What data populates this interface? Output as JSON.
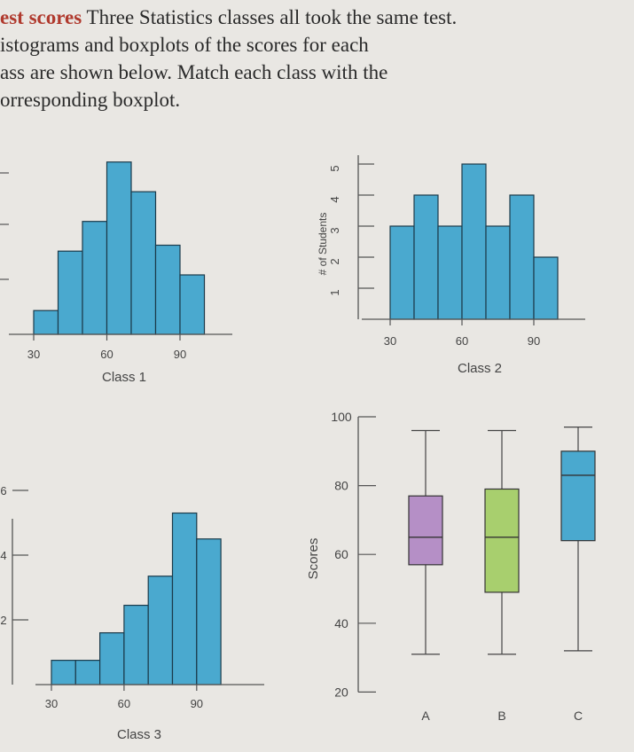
{
  "problem": {
    "heading": "est scores",
    "lines": [
      " Three Statistics classes all took the same test.",
      "istograms and boxplots of the scores for each",
      "ass are shown below. Match each class with the",
      "orresponding boxplot."
    ]
  },
  "colors": {
    "bar_fill": "#4aa9cf",
    "bar_stroke": "#1b3a4a",
    "box_a": "#b58fc6",
    "box_b": "#a8cf6e",
    "box_c": "#4aa9cf"
  },
  "chart_data": [
    {
      "type": "bar",
      "xlabel": "Class 1",
      "ylabel": "",
      "x_ticks": [
        "30",
        "60",
        "90"
      ],
      "bin_width": 10,
      "bin_starts": [
        30,
        40,
        50,
        60,
        70,
        80,
        90
      ],
      "values": [
        0.8,
        2.8,
        3.8,
        5.8,
        4.8,
        3.0,
        2.0
      ],
      "y_ticks": [],
      "ylim": [
        0,
        6
      ]
    },
    {
      "type": "bar",
      "xlabel": "Class 2",
      "ylabel": "# of Students",
      "x_ticks": [
        "30",
        "60",
        "90"
      ],
      "bin_width": 10,
      "bin_starts": [
        30,
        40,
        50,
        60,
        70,
        80,
        90
      ],
      "values": [
        3,
        4,
        3,
        5,
        3,
        4,
        2
      ],
      "y_ticks": [
        "1",
        "2",
        "3",
        "4",
        "5"
      ],
      "ylim": [
        0,
        5.3
      ]
    },
    {
      "type": "bar",
      "xlabel": "Class 3",
      "ylabel": "",
      "x_ticks": [
        "30",
        "60",
        "90"
      ],
      "bin_width": 10,
      "bin_starts": [
        30,
        40,
        50,
        60,
        70,
        80,
        90
      ],
      "values": [
        0.75,
        0.75,
        1.6,
        2.45,
        3.35,
        5.3,
        4.5
      ],
      "y_ticks": [
        "2",
        "4",
        "6"
      ],
      "ylim": [
        0,
        6.5
      ]
    },
    {
      "type": "boxplot",
      "ylabel": "Scores",
      "y_ticks": [
        "20",
        "40",
        "60",
        "80",
        "100"
      ],
      "ylim": [
        20,
        100
      ],
      "boxes": [
        {
          "label": "A",
          "min": 31,
          "q1": 57,
          "median": 65,
          "q3": 77,
          "max": 96
        },
        {
          "label": "B",
          "min": 31,
          "q1": 49,
          "median": 65,
          "q3": 79,
          "max": 96
        },
        {
          "label": "C",
          "min": 32,
          "q1": 64,
          "median": 83,
          "q3": 90,
          "max": 97
        }
      ]
    }
  ]
}
